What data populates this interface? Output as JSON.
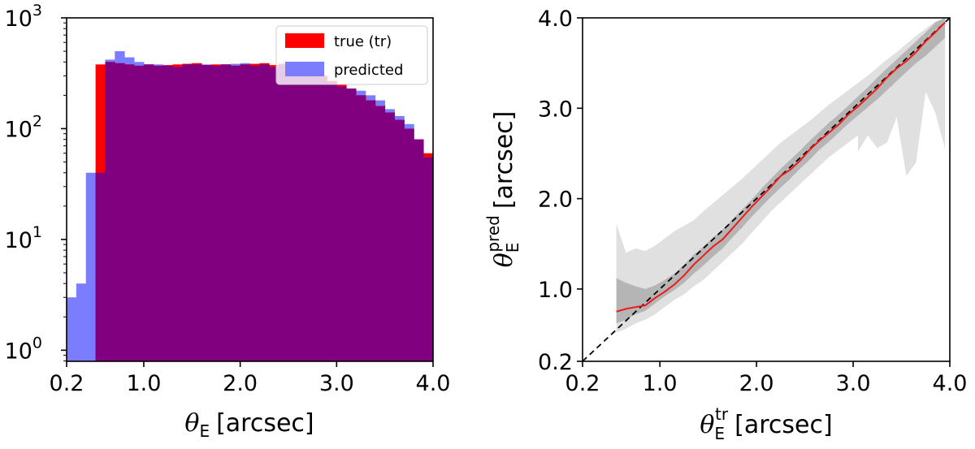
{
  "colors": {
    "true_hist": "#ff0000",
    "pred_hist": "#7c7cff",
    "overlap": "#800080",
    "band_outer": "#e0e0e0",
    "band_inner": "#b5b5b5",
    "median_line": "#ee1a1a",
    "identity": "#000000"
  },
  "chart_data": [
    {
      "type": "histogram",
      "ylog": true,
      "xlim": [
        0.2,
        4.0
      ],
      "ylim_log10": [
        -0.1,
        3.0
      ],
      "xticks": [
        0.2,
        1.0,
        2.0,
        3.0,
        4.0
      ],
      "xtick_labels": [
        "0.2",
        "1.0",
        "2.0",
        "3.0",
        "4.0"
      ],
      "yticks_exp": [
        0,
        1,
        2,
        3
      ],
      "ytick_base": "10",
      "ytick_exponents": [
        "0",
        "1",
        "2",
        "3"
      ],
      "xlabel_symbol": "θ",
      "xlabel_sub": "E",
      "xlabel_unit": "[arcsec]",
      "bin_edges": [
        0.2,
        0.3,
        0.4,
        0.5,
        0.6,
        0.7,
        0.8,
        0.9,
        1.0,
        1.1,
        1.2,
        1.3,
        1.4,
        1.5,
        1.6,
        1.7,
        1.8,
        1.9,
        2.0,
        2.1,
        2.2,
        2.3,
        2.4,
        2.5,
        2.6,
        2.7,
        2.8,
        2.9,
        3.0,
        3.1,
        3.2,
        3.3,
        3.4,
        3.5,
        3.6,
        3.7,
        3.8,
        3.9,
        4.0
      ],
      "series": [
        {
          "name": "true (tr)",
          "values": [
            0,
            0,
            0,
            380,
            400,
            390,
            380,
            370,
            380,
            370,
            375,
            380,
            385,
            390,
            375,
            380,
            380,
            370,
            380,
            385,
            390,
            375,
            380,
            370,
            350,
            330,
            300,
            270,
            250,
            230,
            200,
            180,
            160,
            140,
            120,
            100,
            80,
            60
          ]
        },
        {
          "name": "predicted",
          "values": [
            3,
            4,
            40,
            40,
            420,
            500,
            440,
            400,
            380,
            380,
            370,
            360,
            380,
            380,
            380,
            370,
            380,
            385,
            390,
            370,
            380,
            360,
            390,
            380,
            350,
            320,
            290,
            260,
            240,
            230,
            220,
            200,
            180,
            150,
            130,
            110,
            80,
            55
          ]
        }
      ],
      "legend": {
        "placement": "top-right",
        "items": [
          "true (tr)",
          "predicted"
        ]
      }
    },
    {
      "type": "line",
      "xlim": [
        0.2,
        4.0
      ],
      "ylim": [
        0.2,
        4.0
      ],
      "xticks": [
        0.2,
        1.0,
        2.0,
        3.0,
        4.0
      ],
      "xtick_labels": [
        "0.2",
        "1.0",
        "2.0",
        "3.0",
        "4.0"
      ],
      "yticks": [
        0.2,
        1.0,
        2.0,
        3.0,
        4.0
      ],
      "ytick_labels": [
        "0.2",
        "1.0",
        "2.0",
        "3.0",
        "4.0"
      ],
      "xlabel_symbol": "θ",
      "xlabel_sub": "E",
      "xlabel_sup": "tr",
      "xlabel_unit": "[arcsec]",
      "ylabel_symbol": "θ",
      "ylabel_sub": "E",
      "ylabel_sup": "pred",
      "ylabel_unit": "[arcsec]",
      "x": [
        0.55,
        0.65,
        0.75,
        0.85,
        0.95,
        1.05,
        1.15,
        1.25,
        1.35,
        1.45,
        1.55,
        1.65,
        1.75,
        1.85,
        1.95,
        2.05,
        2.15,
        2.25,
        2.35,
        2.45,
        2.55,
        2.65,
        2.75,
        2.85,
        2.95,
        3.05,
        3.15,
        3.25,
        3.35,
        3.45,
        3.55,
        3.65,
        3.75,
        3.85,
        3.95
      ],
      "median": [
        0.75,
        0.78,
        0.8,
        0.82,
        0.9,
        0.97,
        1.05,
        1.15,
        1.27,
        1.37,
        1.47,
        1.55,
        1.67,
        1.79,
        1.91,
        2.02,
        2.13,
        2.25,
        2.32,
        2.42,
        2.54,
        2.64,
        2.73,
        2.82,
        2.93,
        3.02,
        3.12,
        3.22,
        3.34,
        3.44,
        3.52,
        3.62,
        3.74,
        3.84,
        3.95
      ],
      "band_inner_low": [
        0.62,
        0.66,
        0.72,
        0.76,
        0.84,
        0.92,
        0.99,
        1.07,
        1.17,
        1.26,
        1.36,
        1.45,
        1.57,
        1.68,
        1.8,
        1.91,
        2.02,
        2.12,
        2.22,
        2.33,
        2.43,
        2.54,
        2.63,
        2.73,
        2.83,
        2.92,
        3.01,
        3.1,
        3.2,
        3.3,
        3.4,
        3.5,
        3.58,
        3.68,
        3.78
      ],
      "band_inner_high": [
        1.12,
        1.07,
        1.03,
        1.0,
        1.04,
        1.1,
        1.17,
        1.27,
        1.38,
        1.47,
        1.57,
        1.66,
        1.77,
        1.88,
        1.99,
        2.11,
        2.22,
        2.33,
        2.43,
        2.53,
        2.64,
        2.74,
        2.84,
        2.93,
        3.03,
        3.13,
        3.23,
        3.34,
        3.44,
        3.54,
        3.64,
        3.74,
        3.84,
        3.95,
        4.02
      ],
      "band_outer_low": [
        0.52,
        0.56,
        0.62,
        0.66,
        0.72,
        0.8,
        0.88,
        0.94,
        1.03,
        1.1,
        1.2,
        1.3,
        1.4,
        1.5,
        1.62,
        1.74,
        1.86,
        1.96,
        2.06,
        2.16,
        2.26,
        2.36,
        2.46,
        2.54,
        2.62,
        2.7,
        2.74,
        2.8,
        2.88,
        2.96,
        3.04,
        3.12,
        3.18,
        3.22,
        3.28
      ],
      "band_outer_high": [
        1.72,
        1.4,
        1.45,
        1.42,
        1.48,
        1.56,
        1.64,
        1.7,
        1.76,
        1.86,
        1.95,
        2.04,
        2.13,
        2.22,
        2.32,
        2.42,
        2.52,
        2.62,
        2.7,
        2.78,
        2.86,
        2.95,
        3.04,
        3.12,
        3.2,
        3.28,
        3.36,
        3.45,
        3.54,
        3.62,
        3.71,
        3.8,
        3.88,
        3.96,
        4.02
      ],
      "outer_dip_x": [
        3.05,
        3.15,
        3.25,
        3.35,
        3.45,
        3.55,
        3.65,
        3.75,
        3.85,
        3.95
      ],
      "outer_dip_low": [
        2.52,
        2.7,
        2.56,
        2.62,
        2.9,
        2.25,
        2.4,
        3.18,
        2.95,
        2.55
      ],
      "identity_line": [
        [
          0.2,
          0.2
        ],
        [
          4.0,
          4.0
        ]
      ]
    }
  ]
}
